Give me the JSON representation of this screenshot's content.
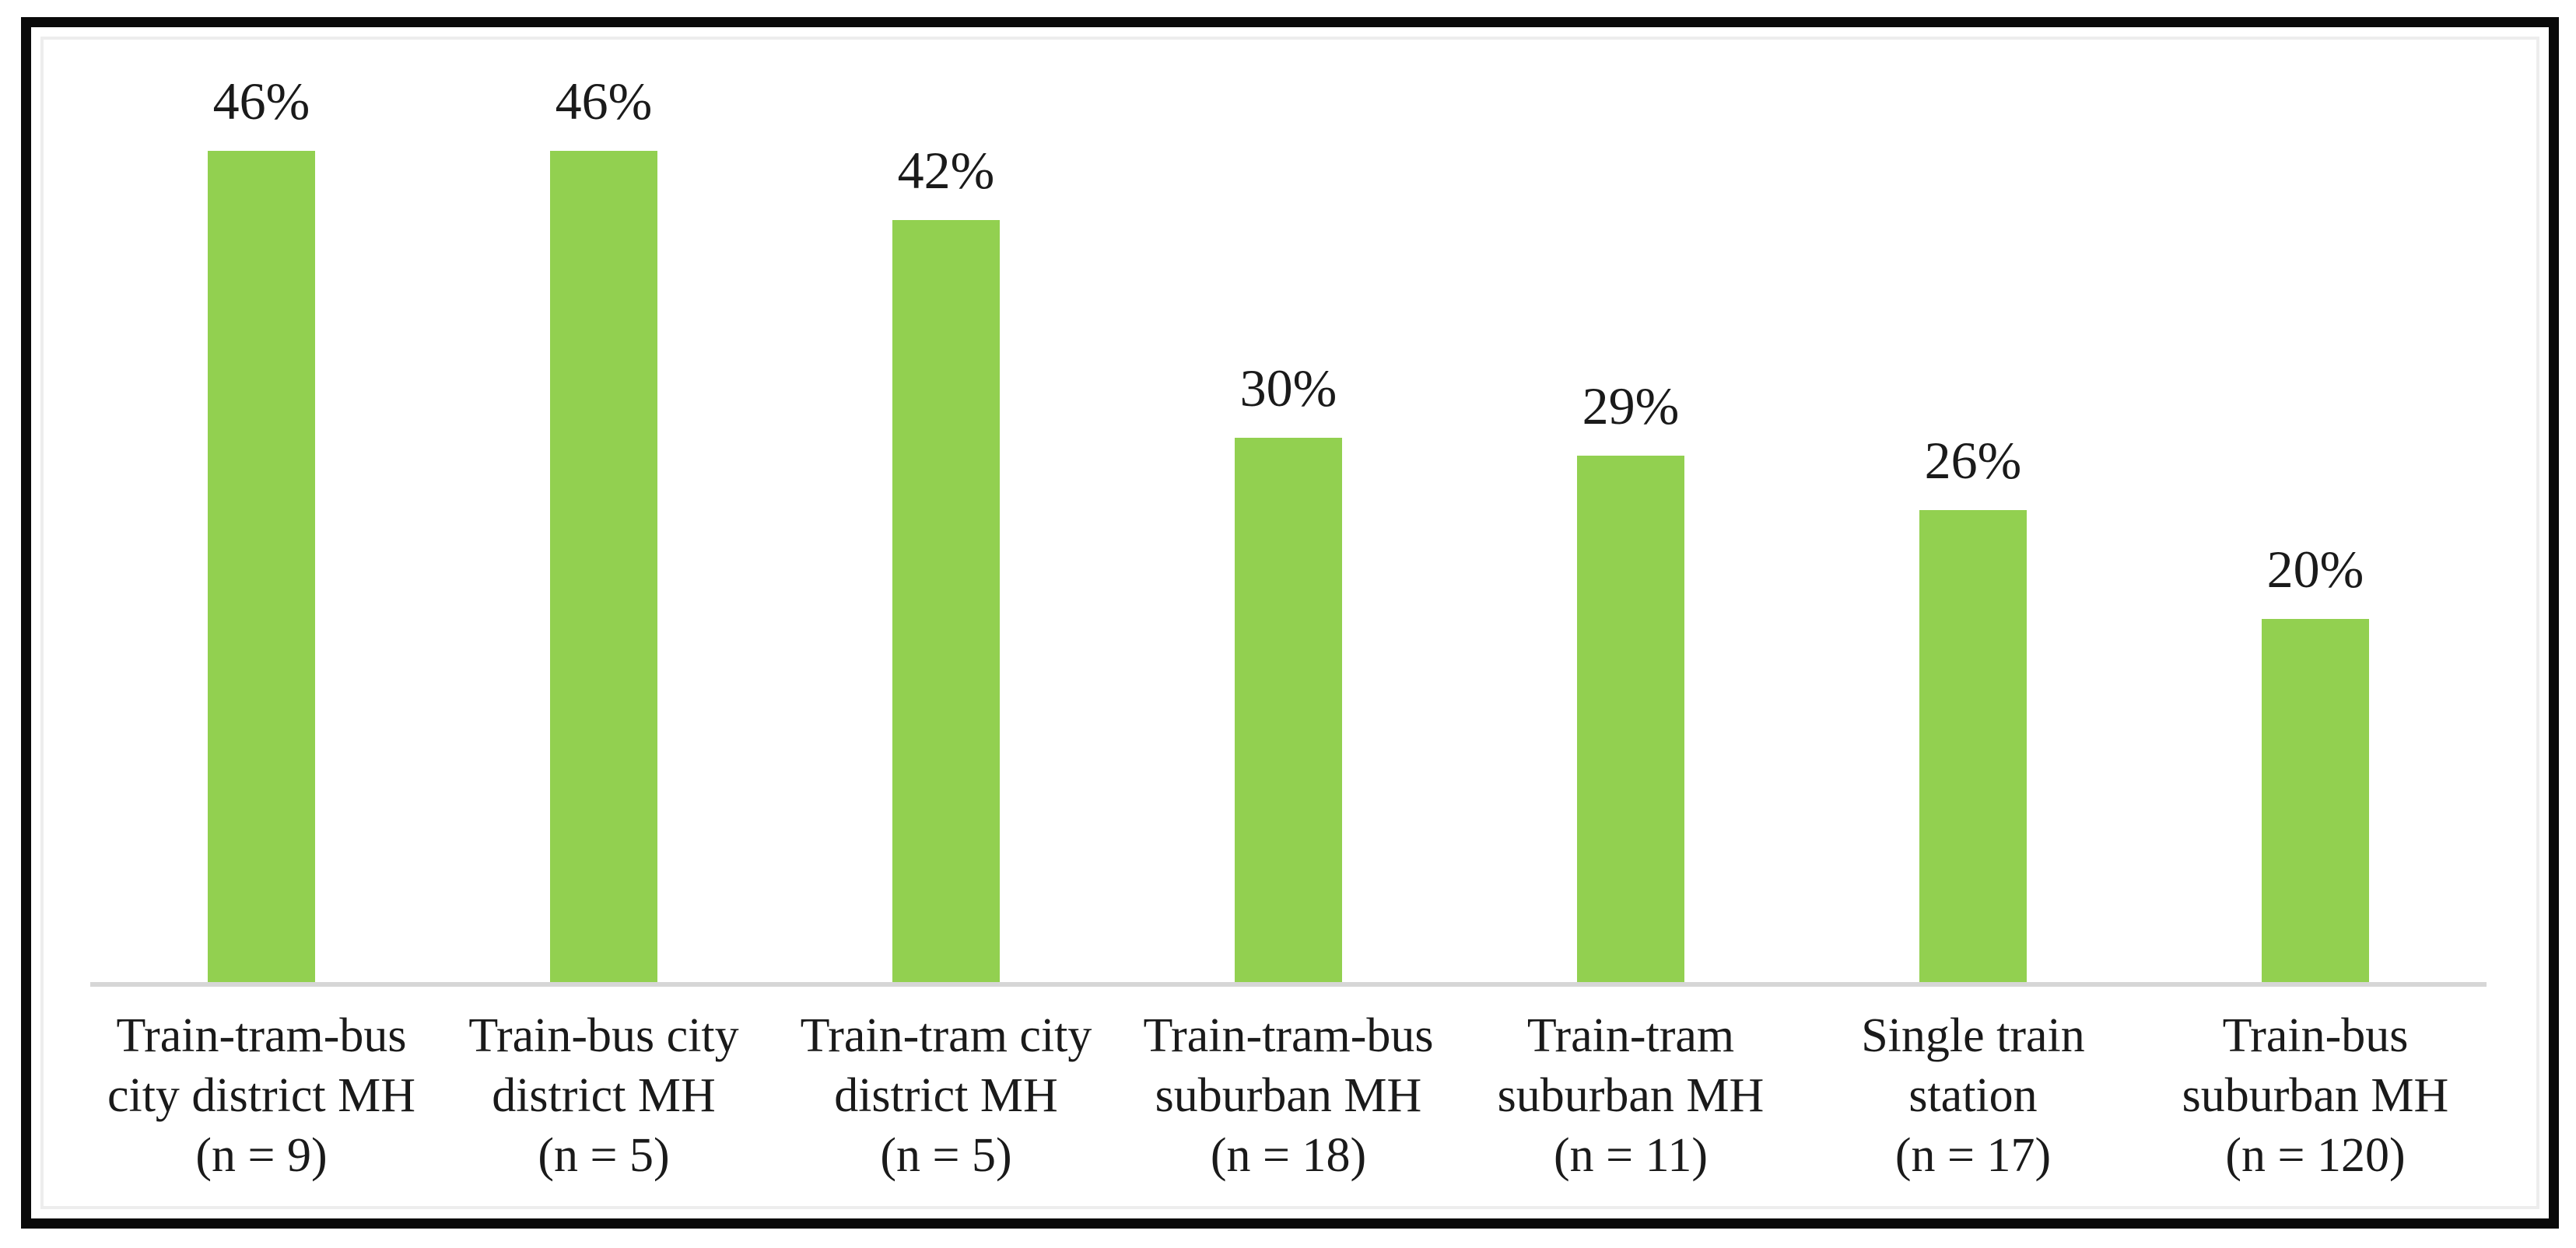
{
  "chart_data": {
    "type": "bar",
    "title": "",
    "xlabel": "",
    "ylabel": "",
    "ylim": [
      0,
      50
    ],
    "grid": false,
    "legend": false,
    "data_labels_position": "above bars",
    "categories": [
      [
        "Train-tram-bus",
        "city district MH",
        "(n = 9)"
      ],
      [
        "Train-bus city",
        "district MH",
        "(n = 5)"
      ],
      [
        "Train-tram city",
        "district MH",
        "(n = 5)"
      ],
      [
        "Train-tram-bus",
        "suburban MH",
        "(n = 18)"
      ],
      [
        "Train-tram",
        "suburban MH",
        "(n = 11)"
      ],
      [
        "Single train",
        "station",
        "(n = 17)"
      ],
      [
        "Train-bus",
        "suburban MH",
        "(n = 120)"
      ]
    ],
    "values": [
      46,
      46,
      42,
      30,
      29,
      26,
      20
    ],
    "value_labels": [
      "46%",
      "46%",
      "42%",
      "30%",
      "29%",
      "26%",
      "20%"
    ],
    "colors": {
      "bar_fill": "#92D050",
      "axis_line": "#D6D6D6",
      "text": "#1a1a1a",
      "frame_border": "#0a0a0a",
      "background": "#FFFFFF"
    }
  }
}
